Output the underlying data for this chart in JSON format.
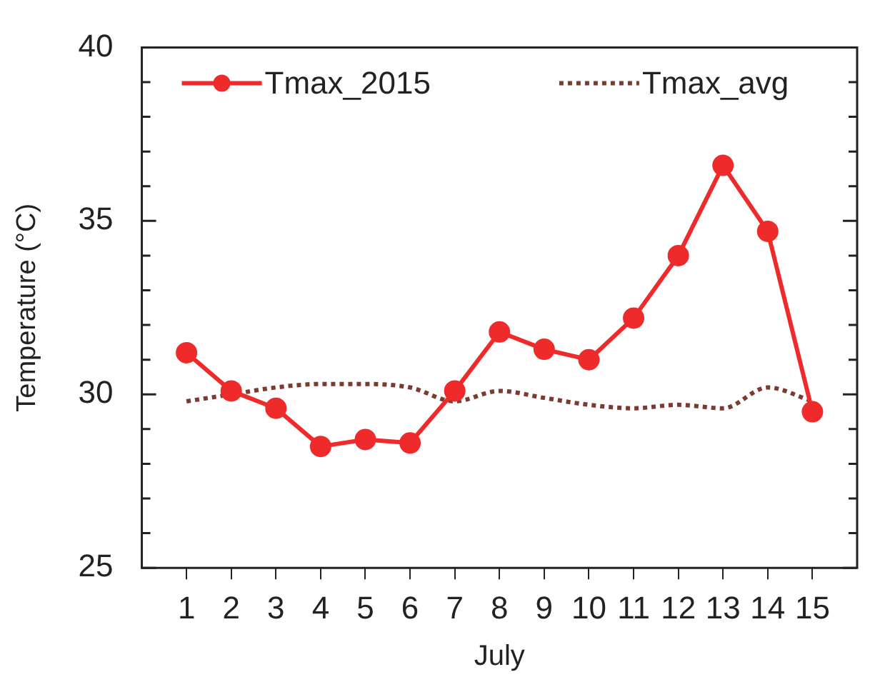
{
  "chart_data": {
    "type": "line",
    "xlabel": "July",
    "ylabel": "Temperature (°C)",
    "x": [
      1,
      2,
      3,
      4,
      5,
      6,
      7,
      8,
      9,
      10,
      11,
      12,
      13,
      14,
      15
    ],
    "series": [
      {
        "name": "Tmax_2015",
        "color": "#ee2a2a",
        "marker": "circle",
        "line_style": "solid",
        "values": [
          31.2,
          30.1,
          29.6,
          28.5,
          28.7,
          28.6,
          30.1,
          31.8,
          31.3,
          31.0,
          32.2,
          34.0,
          36.6,
          34.7,
          29.5
        ]
      },
      {
        "name": "Tmax_avg",
        "color": "#7b3b2e",
        "marker": "none",
        "line_style": "dotted",
        "values": [
          29.8,
          30.0,
          30.2,
          30.3,
          30.3,
          30.2,
          29.8,
          30.1,
          29.9,
          29.7,
          29.6,
          29.7,
          29.6,
          30.2,
          29.8
        ]
      }
    ],
    "xlim": [
      0,
      16
    ],
    "xticks": [
      1,
      2,
      3,
      4,
      5,
      6,
      7,
      8,
      9,
      10,
      11,
      12,
      13,
      14,
      15
    ],
    "ylim": [
      25,
      40
    ],
    "yticks": [
      25,
      {
        "value": 26,
        "label": null
      },
      {
        "value": 27,
        "label": null
      },
      {
        "value": 28,
        "label": null
      },
      {
        "value": 29,
        "label": null
      },
      30,
      {
        "value": 31,
        "label": null
      },
      {
        "value": 32,
        "label": null
      },
      {
        "value": 33,
        "label": null
      },
      {
        "value": 34,
        "label": null
      },
      35,
      {
        "value": 36,
        "label": null
      },
      {
        "value": 37,
        "label": null
      },
      {
        "value": 38,
        "label": null
      },
      {
        "value": 39,
        "label": null
      },
      40
    ],
    "grid": false,
    "legend": "top left"
  }
}
